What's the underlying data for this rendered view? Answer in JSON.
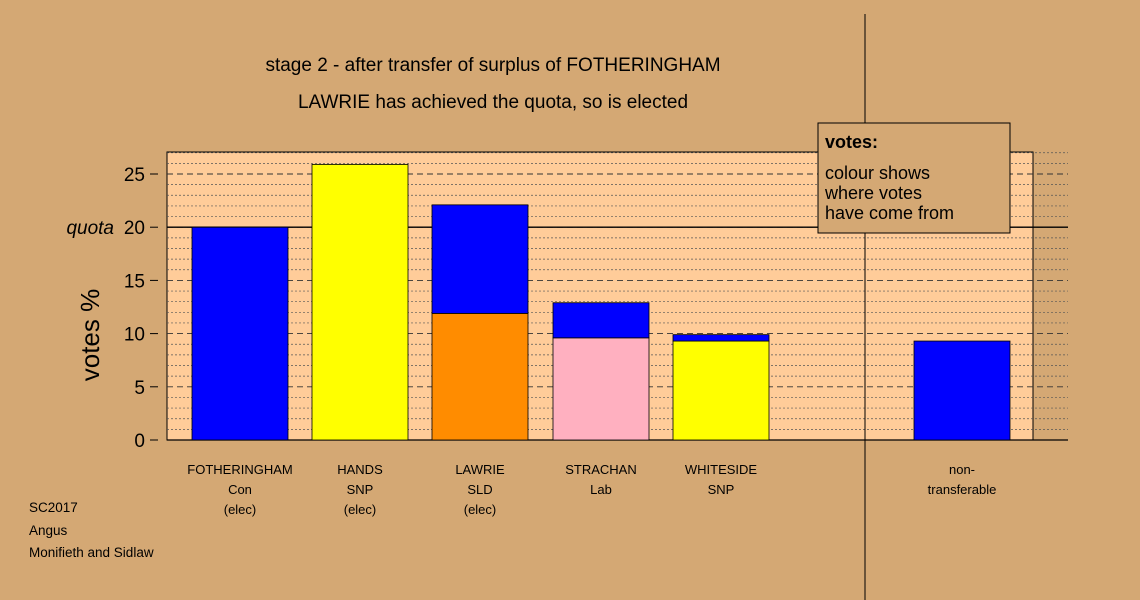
{
  "title_line1": "stage 2 - after transfer of surplus of FOTHERINGHAM",
  "title_line2": "LAWRIE has achieved the quota, so is elected",
  "footer": [
    "SC2017",
    "Angus",
    "Monifieth and Sidlaw"
  ],
  "legend": {
    "title": "votes:",
    "lines": [
      "colour shows",
      "where votes",
      "have come from"
    ]
  },
  "colors": {
    "background": "#d4a874",
    "panel": "#ffcc99",
    "Con": "#0000ff",
    "SNP": "#ffff00",
    "SLD": "#ff8c00",
    "Lab": "#ffb0c0"
  },
  "chart_data": {
    "type": "bar",
    "stacked": true,
    "ylabel": "votes %",
    "ylim": [
      0,
      27
    ],
    "yticks": [
      0,
      5,
      10,
      15,
      20,
      25
    ],
    "quota": 20,
    "quota_label": "quota",
    "grid": true,
    "legend_position": "top-right",
    "categories": [
      {
        "name": "FOTHERINGHAM",
        "party": "Con",
        "status": "(elec)",
        "segments": [
          {
            "from": "Con",
            "value": 20.0
          }
        ]
      },
      {
        "name": "HANDS",
        "party": "SNP",
        "status": "(elec)",
        "segments": [
          {
            "from": "SNP",
            "value": 25.9
          }
        ]
      },
      {
        "name": "LAWRIE",
        "party": "SLD",
        "status": "(elec)",
        "segments": [
          {
            "from": "SLD",
            "value": 11.9
          },
          {
            "from": "Con",
            "value": 10.2
          }
        ]
      },
      {
        "name": "STRACHAN",
        "party": "Lab",
        "status": "",
        "segments": [
          {
            "from": "Lab",
            "value": 9.6
          },
          {
            "from": "Con",
            "value": 3.3
          }
        ]
      },
      {
        "name": "WHITESIDE",
        "party": "SNP",
        "status": "",
        "segments": [
          {
            "from": "SNP",
            "value": 9.3
          },
          {
            "from": "Con",
            "value": 0.6
          }
        ]
      },
      {
        "name": "non-",
        "party": "transferable",
        "status": "",
        "segments": [
          {
            "from": "Con",
            "value": 9.3
          }
        ]
      }
    ]
  }
}
